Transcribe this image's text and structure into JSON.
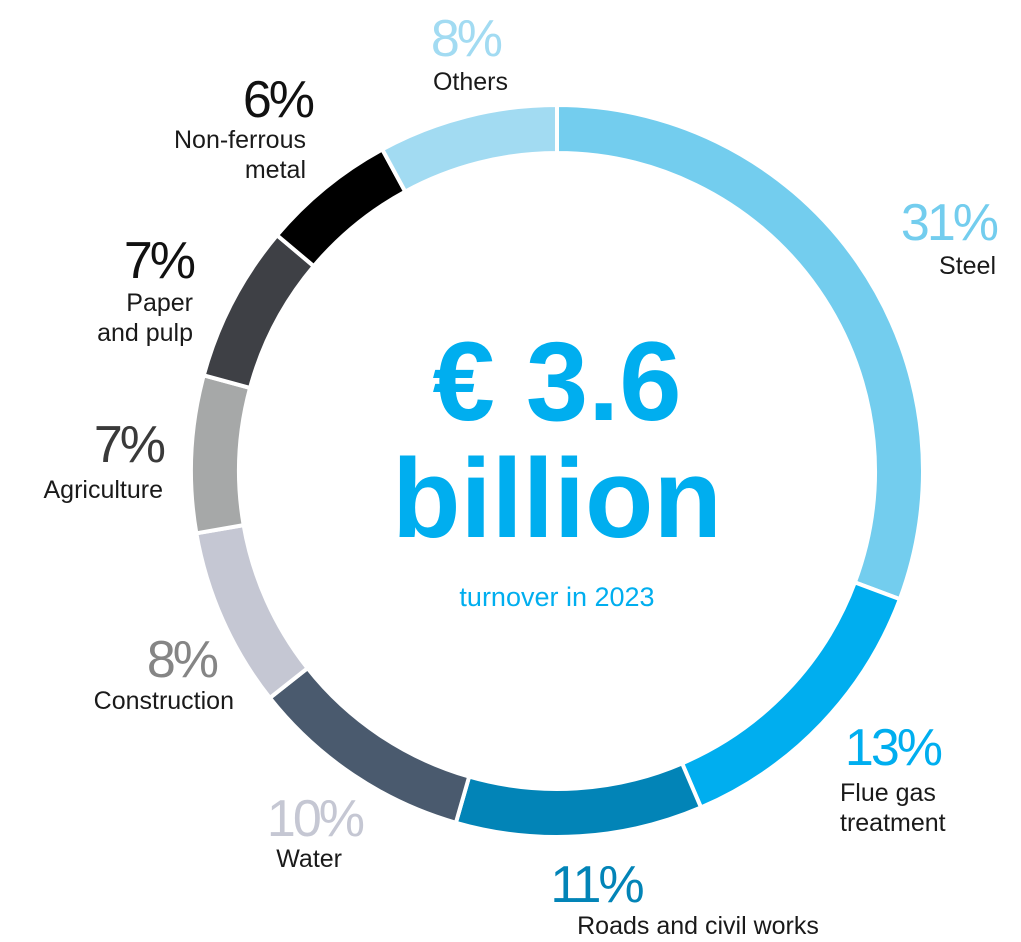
{
  "chart_data": {
    "type": "pie",
    "donut": true,
    "total_line1": "€ 3.6",
    "total_line2": "billion",
    "total_caption": "turnover in 2023",
    "slices": [
      {
        "label": "Steel",
        "value": 31,
        "percent_label": "31%",
        "color": "#73cdee",
        "label_color": "#73cdee"
      },
      {
        "label": "Flue gas treatment",
        "value": 13,
        "percent_label": "13%",
        "color": "#00aeef",
        "label_color": "#00aeef"
      },
      {
        "label": "Roads and civil works",
        "value": 11,
        "percent_label": "11%",
        "color": "#0284b7",
        "label_color": "#0284b7"
      },
      {
        "label": "Water",
        "value": 10,
        "percent_label": "10%",
        "color": "#4a5a6e",
        "label_color": "#c5c7d3"
      },
      {
        "label": "Construction",
        "value": 8,
        "percent_label": "8%",
        "color": "#c5c7d3",
        "label_color": "#858585"
      },
      {
        "label": "Agriculture",
        "value": 7,
        "percent_label": "7%",
        "color": "#a6a8a8",
        "label_color": "#3a3a3a"
      },
      {
        "label": "Paper and pulp",
        "value": 7,
        "percent_label": "7%",
        "color": "#3e4045",
        "label_color": "#111111"
      },
      {
        "label": "Non-ferrous metal",
        "value": 6,
        "percent_label": "6%",
        "color": "#000000",
        "label_color": "#111111"
      },
      {
        "label": "Others",
        "value": 8,
        "percent_label": "8%",
        "color": "#a2dbf2",
        "label_color": "#a2dbf2"
      }
    ]
  }
}
